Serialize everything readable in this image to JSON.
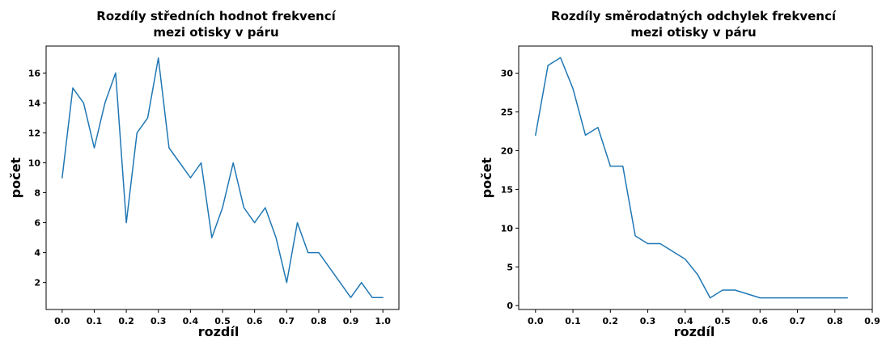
{
  "chart_data": [
    {
      "type": "line",
      "title": "Rozdíly středních hodnot frekvencí",
      "subtitle": "mezi otisky v páru",
      "xlabel": "rozdíl",
      "ylabel": "počet",
      "xlim": [
        -0.05,
        1.05
      ],
      "ylim": [
        0.2,
        17.8
      ],
      "xticks": [
        "0.0",
        "0.1",
        "0.2",
        "0.3",
        "0.4",
        "0.5",
        "0.6",
        "0.7",
        "0.8",
        "0.9",
        "1.0"
      ],
      "yticks": [
        "2",
        "4",
        "6",
        "8",
        "10",
        "12",
        "14",
        "16"
      ],
      "grid": false,
      "color": "#1f77b4",
      "x": [
        0.0,
        0.0333,
        0.0667,
        0.1,
        0.1333,
        0.1667,
        0.2,
        0.2333,
        0.2667,
        0.3,
        0.3333,
        0.3667,
        0.4,
        0.4333,
        0.4667,
        0.5,
        0.5333,
        0.5667,
        0.6,
        0.6333,
        0.6667,
        0.7,
        0.7333,
        0.7667,
        0.8,
        0.9,
        0.9333,
        0.9667,
        1.0
      ],
      "y": [
        9,
        15,
        14,
        11,
        14,
        16,
        6,
        12,
        13,
        17,
        11,
        10,
        9,
        10,
        5,
        7,
        10,
        7,
        6,
        7,
        5,
        2,
        6,
        4,
        4,
        1,
        2,
        1,
        1
      ]
    },
    {
      "type": "line",
      "title": "Rozdíly směrodatných odchylek frekvencí",
      "subtitle": "mezi otisky v páru",
      "xlabel": "rozdíl",
      "ylabel": "počet",
      "xlim": [
        -0.045,
        0.9
      ],
      "ylim": [
        -0.5,
        33.5
      ],
      "xticks": [
        "0.0",
        "0.1",
        "0.2",
        "0.3",
        "0.4",
        "0.5",
        "0.6",
        "0.7",
        "0.8",
        "0.9"
      ],
      "yticks": [
        "0",
        "5",
        "10",
        "15",
        "20",
        "25",
        "30"
      ],
      "grid": false,
      "color": "#1f77b4",
      "x": [
        0.0,
        0.0333,
        0.0667,
        0.1,
        0.1333,
        0.1667,
        0.2,
        0.2333,
        0.2667,
        0.3,
        0.3333,
        0.4,
        0.4333,
        0.4667,
        0.5,
        0.5333,
        0.6,
        0.8333
      ],
      "y": [
        22,
        31,
        32,
        28,
        22,
        23,
        18,
        18,
        9,
        8,
        8,
        6,
        4,
        1,
        2,
        2,
        1,
        1
      ]
    }
  ]
}
